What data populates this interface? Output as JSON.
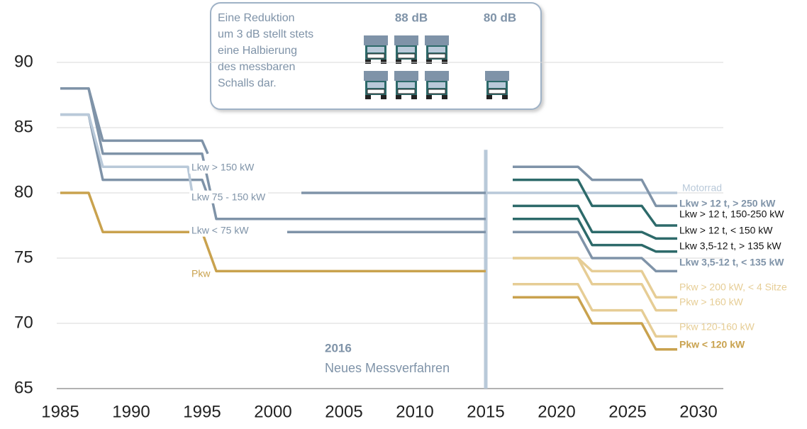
{
  "chart_data": {
    "type": "line",
    "xlim": [
      1984.75,
      2031.75
    ],
    "ylim": [
      65,
      90
    ],
    "xticks": [
      1985,
      1990,
      1995,
      2000,
      2005,
      2010,
      2015,
      2020,
      2025,
      2030
    ],
    "yticks": [
      65,
      70,
      75,
      80,
      85,
      90
    ],
    "grid": true,
    "series": [
      {
        "name": "Lkw > 150 kW",
        "color": "#7f93a8",
        "x": [
          1985,
          1987,
          1988,
          1995,
          1995.4,
          1998,
          2002,
          2015
        ],
        "values": [
          88,
          88,
          84,
          84,
          83,
          null,
          80,
          80
        ]
      },
      {
        "name": "Lkw 75 - 150 kW",
        "color": "#7f93a8",
        "x": [
          1985,
          1987,
          1988,
          1995,
          1996,
          2015
        ],
        "values": [
          88,
          88,
          83,
          83,
          78,
          78
        ]
      },
      {
        "name": "Lkw < 75 kW",
        "color": "#7f93a8",
        "x": [
          1985,
          1987,
          1988,
          1995,
          1995.5,
          1998,
          2001,
          2015
        ],
        "values": [
          86,
          86,
          81,
          81,
          79.5,
          null,
          77,
          77
        ]
      },
      {
        "name": "Pkw",
        "color": "#c9a24e",
        "x": [
          1985,
          1987,
          1988,
          1995,
          1996,
          2015
        ],
        "values": [
          80,
          80,
          77,
          77,
          74,
          74
        ]
      },
      {
        "name": "Motorrad",
        "color": "#b9c9d9",
        "x": [
          1985,
          1987,
          1988,
          1994,
          1994.3,
          2000,
          2015,
          2028.5
        ],
        "values": [
          86,
          86,
          82,
          82,
          80,
          null,
          80,
          80
        ]
      },
      {
        "name": "Lkw > 12 t, > 250 kW",
        "color": "#7f93a8",
        "x": [
          2016.9,
          2021.5,
          2022.5,
          2026,
          2027,
          2028.5
        ],
        "values": [
          82,
          82,
          81,
          81,
          79,
          79
        ]
      },
      {
        "name": "Lkw > 12 t, 150-250 kW",
        "color": "#2d6a6a",
        "x": [
          2016.9,
          2021.5,
          2022.5,
          2026,
          2027,
          2028.5
        ],
        "values": [
          81,
          81,
          79,
          79,
          77.5,
          77.5
        ]
      },
      {
        "name": "Lkw > 12 t, < 150 kW",
        "color": "#2d6a6a",
        "x": [
          2016.9,
          2021.5,
          2022.5,
          2026,
          2027,
          2028.5
        ],
        "values": [
          79,
          79,
          77,
          77,
          76.5,
          76.5
        ]
      },
      {
        "name": "Lkw 3,5-12 t, > 135 kW",
        "color": "#2d6a6a",
        "x": [
          2016.9,
          2021.5,
          2022.5,
          2026,
          2027,
          2028.5
        ],
        "values": [
          78,
          78,
          76,
          76,
          75.5,
          75.5
        ]
      },
      {
        "name": "Lkw 3,5-12 t, < 135 kW",
        "color": "#7f93a8",
        "x": [
          2016.9,
          2021.5,
          2022.5,
          2026,
          2027,
          2028.5
        ],
        "values": [
          77,
          77,
          75,
          75,
          74,
          74
        ]
      },
      {
        "name": "Pkw > 200 kW, < 4 Sitze",
        "color": "#e6cd95",
        "x": [
          2016.9,
          2021.5,
          2022.5,
          2026,
          2027,
          2028.5
        ],
        "values": [
          75,
          75,
          74,
          74,
          72,
          72
        ]
      },
      {
        "name": "Pkw > 160 kW",
        "color": "#e6cd95",
        "x": [
          2016.9,
          2021.5,
          2022.5,
          2026,
          2027,
          2028.5
        ],
        "values": [
          75,
          75,
          73,
          73,
          71,
          71
        ]
      },
      {
        "name": "Pkw 120-160 kW",
        "color": "#e6cd95",
        "x": [
          2016.9,
          2021.5,
          2022.5,
          2026,
          2027,
          2028.5
        ],
        "values": [
          73,
          73,
          71,
          71,
          69,
          69
        ]
      },
      {
        "name": "Pkw < 120 kW",
        "color": "#c9a24e",
        "x": [
          2016.9,
          2021.5,
          2022.5,
          2026,
          2027,
          2028.5
        ],
        "values": [
          72,
          72,
          70,
          70,
          68,
          68
        ]
      }
    ],
    "highlight": {
      "x": 2015,
      "from": 65,
      "to": 83.3,
      "year": "2016",
      "text": "Neues Messverfahren"
    },
    "info": {
      "lines": [
        "Eine Reduktion",
        "um 3 dB stellt stets",
        "eine Halbierung",
        "des messbaren",
        "Schalls dar."
      ],
      "left": "88 dB",
      "right": "80 dB"
    }
  }
}
